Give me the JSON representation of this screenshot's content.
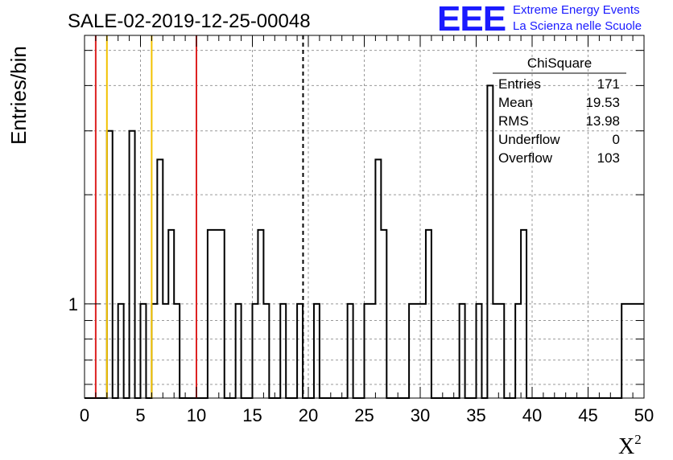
{
  "logo": {
    "mark": "EEE",
    "line1": "Extreme Energy Events",
    "line2": "La Scienza nelle Scuole"
  },
  "chart_data": {
    "type": "histogram",
    "title": "SALE-02-2019-12-25-00048",
    "xlabel": "X",
    "xlabel_superscript": "2",
    "ylabel": "Entries/bin",
    "xlim": [
      0,
      50
    ],
    "ylim": [
      0.55,
      5.5
    ],
    "yscale": "log",
    "bin_width": 0.5,
    "x_ticks": [
      0,
      5,
      10,
      15,
      20,
      25,
      30,
      35,
      40,
      45,
      50
    ],
    "y_tick_labels": [
      {
        "value": 1,
        "label": "1"
      }
    ],
    "grid": true,
    "bins": [
      {
        "x": 2.0,
        "count": 3
      },
      {
        "x": 3.0,
        "count": 1
      },
      {
        "x": 4.0,
        "count": 3
      },
      {
        "x": 5.0,
        "count": 1
      },
      {
        "x": 6.0,
        "count": 1
      },
      {
        "x": 6.5,
        "count": 2.5
      },
      {
        "x": 7.0,
        "count": 1
      },
      {
        "x": 7.5,
        "count": 1.6
      },
      {
        "x": 8.0,
        "count": 1
      },
      {
        "x": 11.0,
        "count": 1.6
      },
      {
        "x": 11.5,
        "count": 1.6
      },
      {
        "x": 12.0,
        "count": 1.6
      },
      {
        "x": 13.5,
        "count": 1
      },
      {
        "x": 15.0,
        "count": 1
      },
      {
        "x": 15.5,
        "count": 1.6
      },
      {
        "x": 16.0,
        "count": 1
      },
      {
        "x": 17.5,
        "count": 1
      },
      {
        "x": 19.0,
        "count": 1
      },
      {
        "x": 20.5,
        "count": 1
      },
      {
        "x": 23.5,
        "count": 1
      },
      {
        "x": 25.0,
        "count": 1
      },
      {
        "x": 25.5,
        "count": 1
      },
      {
        "x": 26.0,
        "count": 2.5
      },
      {
        "x": 26.5,
        "count": 1.6
      },
      {
        "x": 29.0,
        "count": 1
      },
      {
        "x": 29.5,
        "count": 1
      },
      {
        "x": 30.0,
        "count": 1
      },
      {
        "x": 30.5,
        "count": 1.6
      },
      {
        "x": 33.5,
        "count": 1
      },
      {
        "x": 35.0,
        "count": 1
      },
      {
        "x": 36.0,
        "count": 4
      },
      {
        "x": 36.5,
        "count": 1
      },
      {
        "x": 37.0,
        "count": 1
      },
      {
        "x": 38.5,
        "count": 1
      },
      {
        "x": 39.0,
        "count": 1.6
      },
      {
        "x": 48.0,
        "count": 1
      },
      {
        "x": 48.5,
        "count": 1
      },
      {
        "x": 49.0,
        "count": 1
      },
      {
        "x": 49.5,
        "count": 1
      }
    ],
    "vertical_lines": [
      {
        "x": 1.0,
        "color": "#dd2222",
        "style": "solid"
      },
      {
        "x": 2.0,
        "color": "#f2c200",
        "style": "solid"
      },
      {
        "x": 6.0,
        "color": "#f2c200",
        "style": "solid"
      },
      {
        "x": 10.0,
        "color": "#dd2222",
        "style": "solid"
      },
      {
        "x": 19.53,
        "color": "#000000",
        "style": "dashed"
      }
    ],
    "stats_box": {
      "title": "ChiSquare",
      "rows": [
        {
          "label": "Entries",
          "value": "171"
        },
        {
          "label": "Mean",
          "value": "19.53"
        },
        {
          "label": "RMS",
          "value": "13.98"
        },
        {
          "label": "Underflow",
          "value": "0"
        },
        {
          "label": "Overflow",
          "value": "103"
        }
      ]
    }
  }
}
